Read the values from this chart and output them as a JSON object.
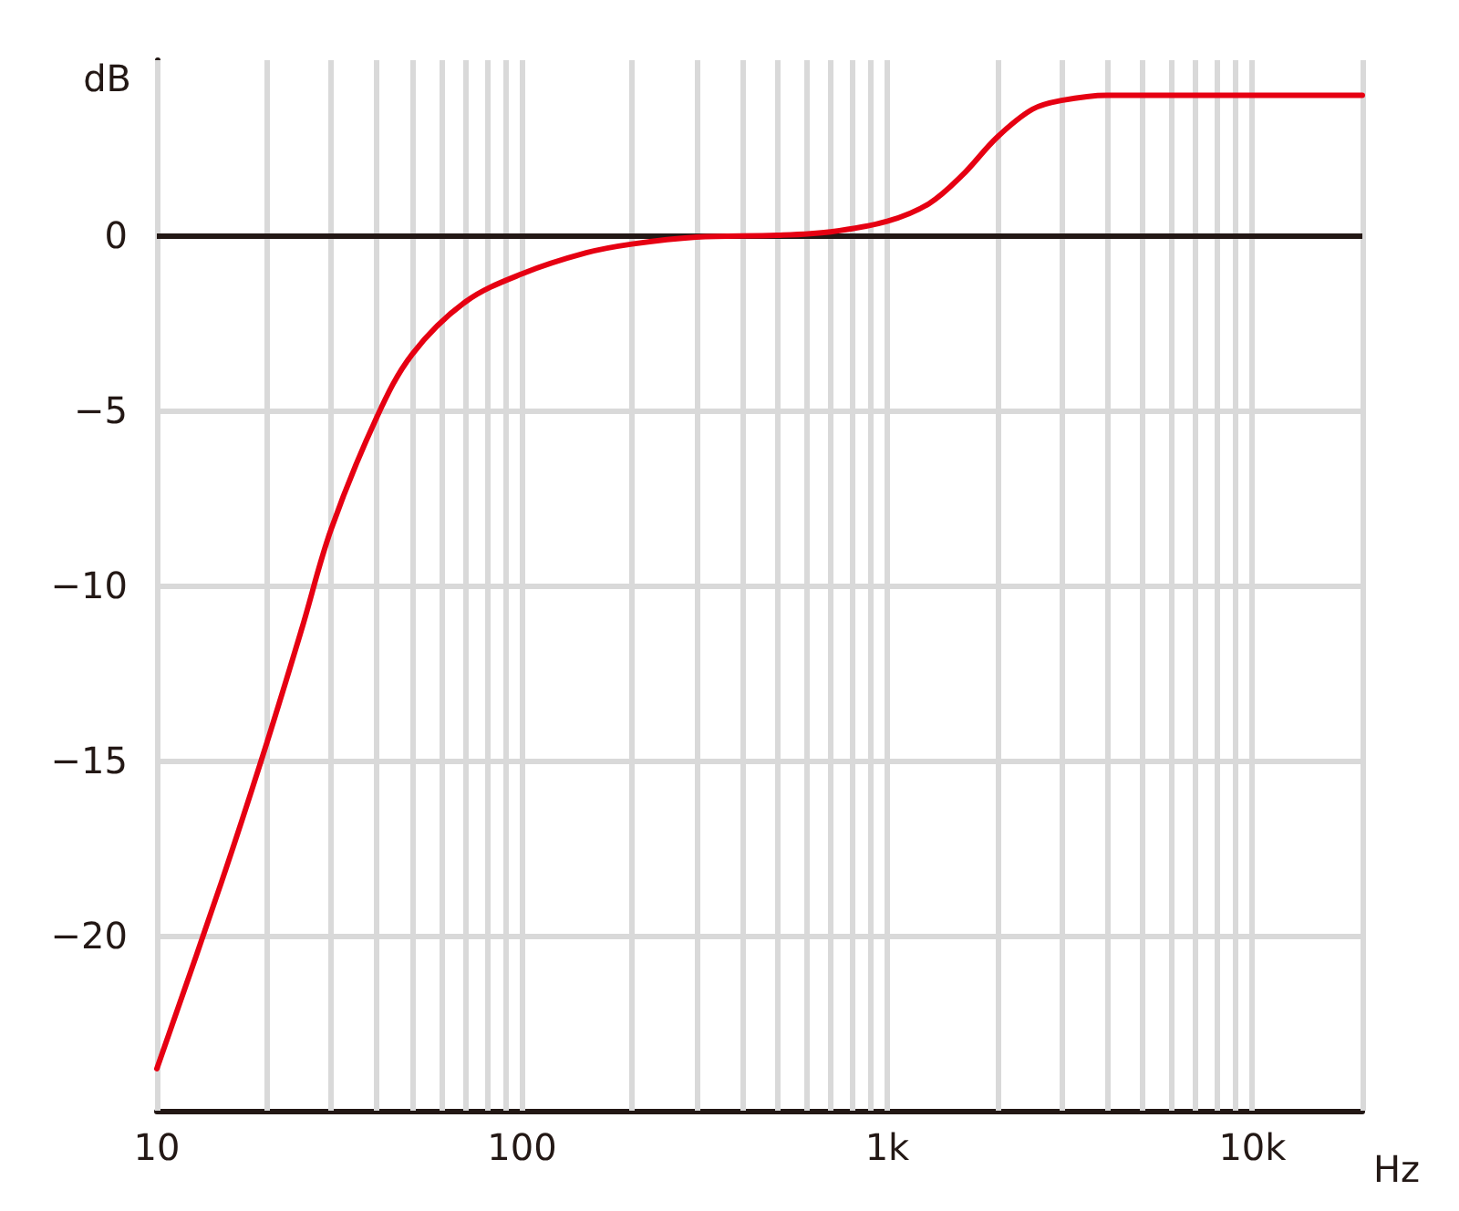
{
  "chart_data": {
    "type": "line",
    "xlabel": "Hz",
    "ylabel": "dB",
    "log": "x",
    "grid": true,
    "marker": "none",
    "line_style": "solid",
    "xlim": [
      10,
      20000
    ],
    "ylim": [
      -25,
      5
    ],
    "xticks": [
      {
        "value": 10,
        "label": "10"
      },
      {
        "value": 20,
        "label": null
      },
      {
        "value": 30,
        "label": null
      },
      {
        "value": 40,
        "label": null
      },
      {
        "value": 50,
        "label": null
      },
      {
        "value": 60,
        "label": null
      },
      {
        "value": 70,
        "label": null
      },
      {
        "value": 80,
        "label": null
      },
      {
        "value": 90,
        "label": null
      },
      {
        "value": 100,
        "label": "100"
      },
      {
        "value": 200,
        "label": null
      },
      {
        "value": 300,
        "label": null
      },
      {
        "value": 400,
        "label": null
      },
      {
        "value": 500,
        "label": null
      },
      {
        "value": 600,
        "label": null
      },
      {
        "value": 700,
        "label": null
      },
      {
        "value": 800,
        "label": null
      },
      {
        "value": 900,
        "label": null
      },
      {
        "value": 1000,
        "label": "1k"
      },
      {
        "value": 2000,
        "label": null
      },
      {
        "value": 3000,
        "label": null
      },
      {
        "value": 4000,
        "label": null
      },
      {
        "value": 5000,
        "label": null
      },
      {
        "value": 6000,
        "label": null
      },
      {
        "value": 7000,
        "label": null
      },
      {
        "value": 8000,
        "label": null
      },
      {
        "value": 9000,
        "label": null
      },
      {
        "value": 10000,
        "label": "10k"
      },
      {
        "value": 20000,
        "label": null
      }
    ],
    "yticks": [
      {
        "value": 0,
        "label": "0"
      },
      {
        "value": -5,
        "label": "−5"
      },
      {
        "value": -10,
        "label": "−10"
      },
      {
        "value": -15,
        "label": "−15"
      },
      {
        "value": -20,
        "label": "−20"
      }
    ],
    "ref_lines": [
      {
        "axis": "y",
        "value": 0,
        "label": null,
        "color": "#231815"
      }
    ],
    "x": [
      10,
      15,
      20,
      25,
      30,
      40,
      50,
      70,
      100,
      150,
      200,
      300,
      500,
      700,
      1000,
      1300,
      1600,
      2000,
      2500,
      3000,
      4000,
      6000,
      10000,
      20000
    ],
    "series": [
      {
        "color": "#e60012",
        "values": [
          -23.8,
          -18.5,
          -14.5,
          -11.2,
          -8.4,
          -5.2,
          -3.4,
          -1.9,
          -1.1,
          -0.5,
          -0.25,
          -0.05,
          0,
          0.1,
          0.4,
          0.9,
          1.7,
          2.8,
          3.6,
          3.85,
          4,
          4,
          4,
          4
        ]
      }
    ]
  }
}
